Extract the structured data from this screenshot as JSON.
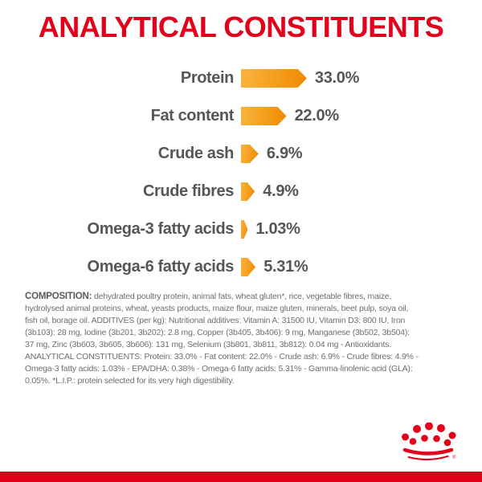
{
  "title": {
    "text": "ANALYTICAL CONSTITUENTS",
    "color": "#E2001A"
  },
  "chart_data": {
    "type": "bar",
    "orientation": "horizontal",
    "title": "ANALYTICAL CONSTITUENTS",
    "categories": [
      "Protein",
      "Fat content",
      "Crude ash",
      "Crude fibres",
      "Omega-3 fatty acids",
      "Omega-6 fatty acids"
    ],
    "values": [
      33.0,
      22.0,
      6.9,
      4.9,
      1.03,
      5.31
    ],
    "value_labels": [
      "33.0%",
      "22.0%",
      "6.9%",
      "4.9%",
      "1.03%",
      "5.31%"
    ],
    "unit": "%",
    "legend": "none",
    "grid": "off",
    "bar_shape": "right-pointing-arrow",
    "bar_gradient": [
      "#F9B440",
      "#F08A00"
    ],
    "label_color": "#55565A"
  },
  "composition": {
    "label": "COMPOSITION:",
    "lines": [
      "dehydrated poultry protein, animal fats, wheat gluten*, rice, vegetable fibres, maize,",
      "hydrolysed animal proteins, wheat, yeasts products, maize flour, maize gluten, minerals, beet pulp, soya oil,",
      "fish oil, borage oil. ADDITIVES (per kg): Nutritional additives: Vitamin A: 31500 IU, Vitamin D3: 800 IU, Iron",
      "(3b103): 28 mg, Iodine (3b201, 3b202): 2.8 mg, Copper (3b405, 3b406): 9 mg, Manganese (3b502, 3b504):",
      "37 mg, Zinc (3b603, 3b605, 3b606): 131 mg, Selenium (3b801, 3b811, 3b812): 0.04 mg - Antioxidants.",
      "ANALYTICAL CONSTITUENTS: Protein: 33.0% - Fat content: 22.0% - Crude ash: 6.9% - Crude fibres: 4.9% -",
      "Omega-3 fatty acids: 1.03% - EPA/DHA: 0.38% - Omega-6 fatty acids: 5.31% - Gamma-linolenic acid (GLA):",
      "0.05%. *L.I.P.: protein selected for its very high digestibility."
    ]
  },
  "footer": {
    "brand_logo": "royal-canin-crown-icon",
    "logo_color": "#E2001A",
    "bar_color": "#E2001A"
  }
}
